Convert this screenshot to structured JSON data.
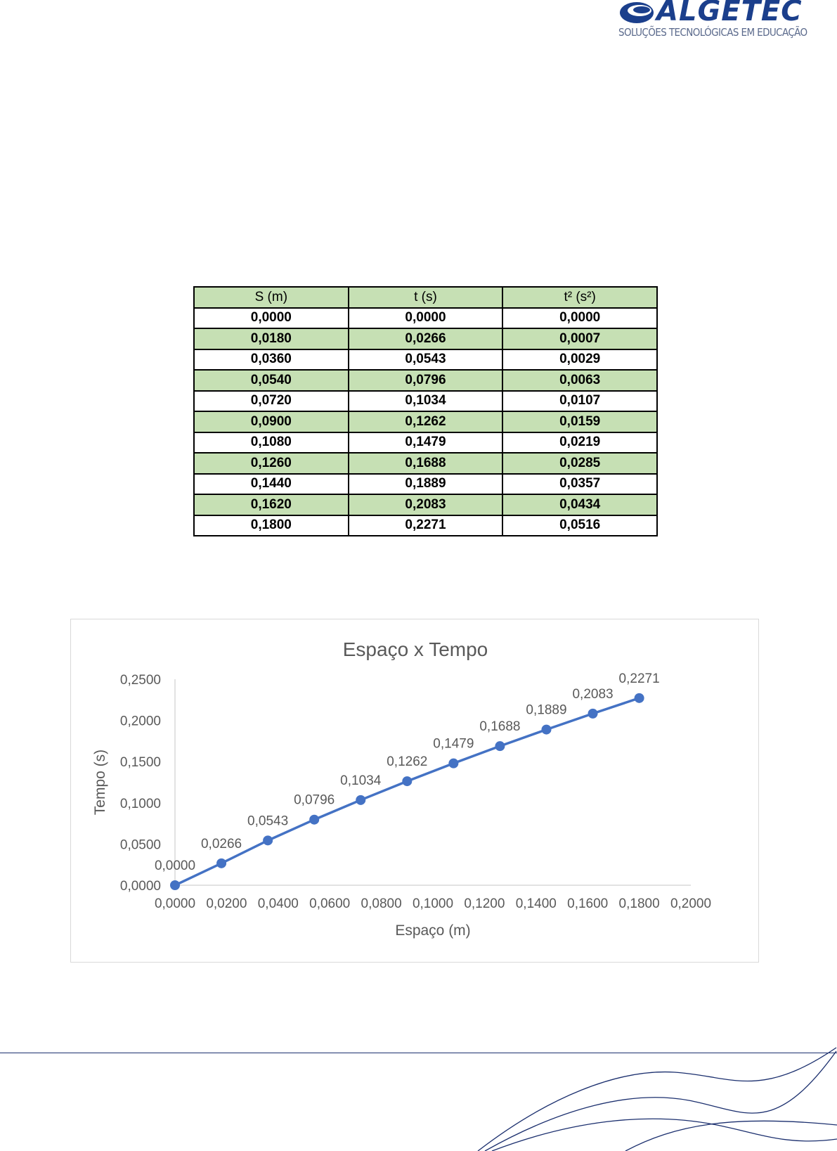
{
  "logo": {
    "name": "ALGETEC",
    "tagline": "SOLUÇÕES TECNOLÓGICAS EM EDUCAÇÃO",
    "color": "#1b3f8c"
  },
  "table": {
    "headers": [
      "S (m)",
      "t (s)",
      "t² (s²)"
    ],
    "rows": [
      [
        "0,0000",
        "0,0000",
        "0,0000"
      ],
      [
        "0,0180",
        "0,0266",
        "0,0007"
      ],
      [
        "0,0360",
        "0,0543",
        "0,0029"
      ],
      [
        "0,0540",
        "0,0796",
        "0,0063"
      ],
      [
        "0,0720",
        "0,1034",
        "0,0107"
      ],
      [
        "0,0900",
        "0,1262",
        "0,0159"
      ],
      [
        "0,1080",
        "0,1479",
        "0,0219"
      ],
      [
        "0,1260",
        "0,1688",
        "0,0285"
      ],
      [
        "0,1440",
        "0,1889",
        "0,0357"
      ],
      [
        "0,1620",
        "0,2083",
        "0,0434"
      ],
      [
        "0,1800",
        "0,2271",
        "0,0516"
      ]
    ],
    "header_color": "#c6e0b4"
  },
  "chart_data": {
    "type": "line",
    "title": "Espaço x Tempo",
    "xlabel": "Espaço (m)",
    "ylabel": "Tempo (s)",
    "xlim": [
      0,
      0.2
    ],
    "ylim": [
      0,
      0.25
    ],
    "x_ticks": [
      "0,0000",
      "0,0200",
      "0,0400",
      "0,0600",
      "0,0800",
      "0,1000",
      "0,1200",
      "0,1400",
      "0,1600",
      "0,1800",
      "0,2000"
    ],
    "y_ticks": [
      "0,0000",
      "0,0500",
      "0,1000",
      "0,1500",
      "0,2000",
      "0,2500"
    ],
    "grid": false,
    "color": "#4472c4",
    "series": [
      {
        "x": [
          0,
          0.018,
          0.036,
          0.054,
          0.072,
          0.09,
          0.108,
          0.126,
          0.144,
          0.162,
          0.18
        ],
        "values": [
          0,
          0.0266,
          0.0543,
          0.0796,
          0.1034,
          0.1262,
          0.1479,
          0.1688,
          0.1889,
          0.2083,
          0.2271
        ],
        "labels": [
          "0,0000",
          "0,0266",
          "0,0543",
          "0,0796",
          "0,1034",
          "0,1262",
          "0,1479",
          "0,1688",
          "0,1889",
          "0,2083",
          "0,2271"
        ]
      }
    ]
  }
}
